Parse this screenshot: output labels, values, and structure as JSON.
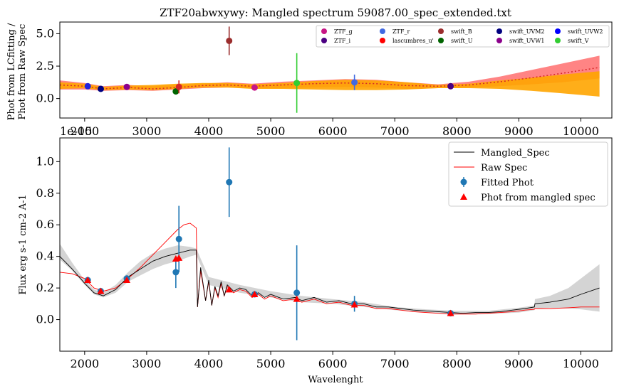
{
  "chart_data": [
    {
      "type": "scatter",
      "title": "ZTF20abwxywy: Mangled spectrum 59087.00_spec_extended.txt",
      "ylabel_lines": [
        "Phot from LCfitting /",
        "Phot from Raw Spec"
      ],
      "xlim": [
        1600,
        10500
      ],
      "ylim": [
        -1.5,
        5.9
      ],
      "yticks": [
        0.0,
        2.5,
        5.0
      ],
      "ytick_labels": [
        "0.0",
        "2.5",
        "5.0"
      ],
      "offset_label": "1e-15",
      "line_ratio": {
        "name": "",
        "color": "#d62728",
        "x": [
          1600,
          2000,
          2300,
          2700,
          3100,
          3500,
          3900,
          4300,
          4700,
          5200,
          5700,
          6200,
          6700,
          7200,
          7700,
          8200,
          8700,
          9200,
          9700,
          10300
        ],
        "y": [
          1.05,
          0.95,
          0.75,
          0.85,
          0.75,
          0.85,
          1.0,
          1.05,
          0.95,
          1.05,
          1.15,
          1.2,
          1.15,
          1.0,
          0.95,
          1.05,
          1.3,
          1.6,
          1.95,
          2.4
        ]
      },
      "band_red": {
        "color": "#ff6f6f",
        "x": [
          1600,
          2000,
          2300,
          2700,
          3100,
          3500,
          3900,
          4300,
          4700,
          5200,
          5700,
          6200,
          6700,
          7200,
          7700,
          8200,
          8700,
          9200,
          9700,
          10300
        ],
        "low": [
          0.7,
          0.7,
          0.6,
          0.65,
          0.6,
          0.7,
          0.8,
          0.85,
          0.8,
          0.8,
          0.85,
          0.9,
          0.85,
          0.75,
          0.8,
          0.85,
          0.95,
          1.1,
          1.25,
          1.55
        ],
        "high": [
          1.4,
          1.2,
          0.95,
          1.05,
          0.95,
          1.05,
          1.15,
          1.25,
          1.15,
          1.3,
          1.4,
          1.5,
          1.45,
          1.25,
          1.1,
          1.3,
          1.7,
          2.2,
          2.7,
          3.3
        ]
      },
      "band_orange": {
        "color": "#ffa500",
        "x": [
          1600,
          2000,
          2300,
          2700,
          3100,
          3500,
          3900,
          4300,
          4700,
          5200,
          5700,
          6200,
          6700,
          7200,
          7700,
          8200,
          8700,
          9200,
          9700,
          10300
        ],
        "low": [
          0.75,
          0.8,
          0.65,
          0.7,
          0.65,
          0.75,
          0.85,
          0.85,
          0.75,
          0.75,
          0.7,
          0.65,
          0.65,
          0.7,
          0.8,
          0.8,
          0.75,
          0.6,
          0.4,
          0.15
        ],
        "high": [
          1.25,
          1.15,
          0.9,
          1.0,
          1.05,
          1.15,
          1.2,
          1.2,
          1.1,
          1.2,
          1.35,
          1.45,
          1.4,
          1.25,
          1.05,
          1.15,
          1.4,
          1.6,
          1.85,
          2.1
        ]
      },
      "points": [
        {
          "x": 2050,
          "y": 0.95,
          "err": 0,
          "color": "#2222dd"
        },
        {
          "x": 2260,
          "y": 0.75,
          "err": 0,
          "color": "#000080"
        },
        {
          "x": 2680,
          "y": 0.9,
          "err": 0,
          "color": "#8b008b"
        },
        {
          "x": 3470,
          "y": 0.55,
          "err": 0,
          "color": "#006400"
        },
        {
          "x": 3520,
          "y": 0.9,
          "err": 0.5,
          "color": "#d62728"
        },
        {
          "x": 4330,
          "y": 4.45,
          "err": 1.1,
          "color": "#9b2d2d"
        },
        {
          "x": 4740,
          "y": 0.85,
          "err": 0,
          "color": "#c71585"
        },
        {
          "x": 5420,
          "y": 1.2,
          "err": 2.3,
          "color": "#32cd32"
        },
        {
          "x": 6350,
          "y": 1.25,
          "err": 0.6,
          "color": "#4169e1"
        },
        {
          "x": 7900,
          "y": 0.95,
          "err": 0,
          "color": "#4b0082"
        }
      ],
      "legend": [
        {
          "label": "ZTF_g",
          "color": "#c71585"
        },
        {
          "label": "ZTF_i",
          "color": "#4b0082"
        },
        {
          "label": "ZTF_r",
          "color": "#4169e1"
        },
        {
          "label": "lascumbres_u'",
          "color": "#ff0000"
        },
        {
          "label": "swift_B",
          "color": "#9b2d2d"
        },
        {
          "label": "swift_U",
          "color": "#006400"
        },
        {
          "label": "swift_UVM2",
          "color": "#000080"
        },
        {
          "label": "swift_UVW1",
          "color": "#8b008b"
        },
        {
          "label": "swift_UVW2",
          "color": "#0000ff"
        },
        {
          "label": "swift_V",
          "color": "#32cd32"
        }
      ]
    },
    {
      "type": "line",
      "xlabel": "Wavelenght",
      "ylabel": "Flux erg s-1 cm-2 A-1",
      "offset_label": "1e-15",
      "xlim": [
        1600,
        10500
      ],
      "ylim": [
        -0.2,
        1.15
      ],
      "xticks": [
        2000,
        3000,
        4000,
        5000,
        6000,
        7000,
        8000,
        9000,
        10000
      ],
      "xtick_labels": [
        "2000",
        "3000",
        "4000",
        "5000",
        "6000",
        "7000",
        "8000",
        "9000",
        "10000"
      ],
      "yticks": [
        0.0,
        0.2,
        0.4,
        0.6,
        0.8,
        1.0
      ],
      "ytick_labels": [
        "0.0",
        "0.2",
        "0.4",
        "0.6",
        "0.8",
        "1.0"
      ],
      "mangled_spec": {
        "name": "Mangled_Spec",
        "color": "#000000",
        "x": [
          1600,
          1800,
          2000,
          2150,
          2300,
          2500,
          2700,
          2900,
          3100,
          3300,
          3500,
          3700,
          3800,
          3820,
          3870,
          3950,
          4000,
          4050,
          4100,
          4150,
          4200,
          4250,
          4300,
          4400,
          4500,
          4600,
          4700,
          4800,
          4900,
          5000,
          5200,
          5400,
          5500,
          5700,
          5900,
          6100,
          6300,
          6500,
          6700,
          6900,
          7100,
          7300,
          7500,
          7700,
          7900,
          8100,
          8300,
          8500,
          8700,
          8900,
          9100,
          9250,
          9260,
          9500,
          9800,
          10000,
          10300
        ],
        "y": [
          0.4,
          0.32,
          0.23,
          0.17,
          0.15,
          0.19,
          0.27,
          0.32,
          0.37,
          0.4,
          0.42,
          0.44,
          0.44,
          0.08,
          0.33,
          0.12,
          0.25,
          0.09,
          0.21,
          0.15,
          0.24,
          0.15,
          0.22,
          0.18,
          0.2,
          0.19,
          0.15,
          0.17,
          0.14,
          0.16,
          0.13,
          0.14,
          0.12,
          0.14,
          0.11,
          0.12,
          0.1,
          0.1,
          0.08,
          0.08,
          0.07,
          0.06,
          0.055,
          0.05,
          0.045,
          0.04,
          0.045,
          0.045,
          0.05,
          0.06,
          0.07,
          0.08,
          0.1,
          0.11,
          0.13,
          0.16,
          0.2
        ]
      },
      "band_gray": {
        "color": "#cccccc",
        "x": [
          1600,
          1800,
          2000,
          2150,
          2300,
          2500,
          2700,
          2900,
          3100,
          3300,
          3500,
          3700,
          3800,
          4000,
          4500,
          5000,
          5500,
          6000,
          6500,
          7000,
          7500,
          8000,
          8500,
          9000,
          9250,
          9260,
          9500,
          9800,
          10000,
          10300
        ],
        "low": [
          0.38,
          0.31,
          0.22,
          0.16,
          0.14,
          0.17,
          0.24,
          0.28,
          0.32,
          0.35,
          0.37,
          0.4,
          0.41,
          0.22,
          0.17,
          0.14,
          0.11,
          0.1,
          0.08,
          0.06,
          0.045,
          0.035,
          0.035,
          0.045,
          0.06,
          0.07,
          0.075,
          0.07,
          0.065,
          0.05
        ],
        "high": [
          0.48,
          0.36,
          0.25,
          0.19,
          0.17,
          0.22,
          0.3,
          0.37,
          0.42,
          0.45,
          0.47,
          0.46,
          0.45,
          0.27,
          0.22,
          0.18,
          0.15,
          0.13,
          0.11,
          0.08,
          0.065,
          0.055,
          0.055,
          0.075,
          0.09,
          0.13,
          0.15,
          0.2,
          0.26,
          0.35
        ]
      },
      "raw_spec": {
        "name": "Raw Spec",
        "color": "#ff0000",
        "x": [
          1600,
          1800,
          2000,
          2150,
          2300,
          2500,
          2700,
          2900,
          3100,
          3300,
          3500,
          3600,
          3700,
          3800,
          3820,
          3870,
          3950,
          4000,
          4050,
          4100,
          4150,
          4200,
          4250,
          4300,
          4400,
          4500,
          4600,
          4700,
          4800,
          4900,
          5000,
          5200,
          5400,
          5500,
          5700,
          5900,
          6100,
          6300,
          6500,
          6700,
          6900,
          7100,
          7300,
          7500,
          7700,
          7900,
          8100,
          8300,
          8500,
          8700,
          8900,
          9100,
          9250,
          9260,
          9500,
          9800,
          10000,
          10300
        ],
        "y": [
          0.3,
          0.29,
          0.26,
          0.2,
          0.18,
          0.2,
          0.26,
          0.33,
          0.41,
          0.49,
          0.57,
          0.6,
          0.61,
          0.58,
          0.08,
          0.31,
          0.12,
          0.24,
          0.09,
          0.2,
          0.14,
          0.23,
          0.15,
          0.21,
          0.17,
          0.19,
          0.18,
          0.14,
          0.16,
          0.13,
          0.15,
          0.12,
          0.13,
          0.11,
          0.13,
          0.1,
          0.11,
          0.09,
          0.09,
          0.07,
          0.07,
          0.06,
          0.05,
          0.045,
          0.04,
          0.035,
          0.035,
          0.035,
          0.04,
          0.045,
          0.05,
          0.06,
          0.065,
          0.07,
          0.07,
          0.075,
          0.08,
          0.08
        ]
      },
      "fitted_phot": {
        "name": "Fitted Phot",
        "color": "#1f77b4",
        "points": [
          {
            "x": 2050,
            "y": 0.25,
            "err": 0.015
          },
          {
            "x": 2260,
            "y": 0.18,
            "err": 0.01
          },
          {
            "x": 2680,
            "y": 0.26,
            "err": 0.02
          },
          {
            "x": 3470,
            "y": 0.3,
            "err": 0.1
          },
          {
            "x": 3520,
            "y": 0.51,
            "err": 0.21
          },
          {
            "x": 4330,
            "y": 0.87,
            "err": 0.22
          },
          {
            "x": 4740,
            "y": 0.16,
            "err": 0.015
          },
          {
            "x": 5420,
            "y": 0.17,
            "err": 0.3
          },
          {
            "x": 6350,
            "y": 0.1,
            "err": 0.05
          },
          {
            "x": 7900,
            "y": 0.04,
            "err": 0.005
          }
        ]
      },
      "phot_mangled": {
        "name": "Phot from mangled spec",
        "color": "#ff0000",
        "points": [
          {
            "x": 2050,
            "y": 0.25
          },
          {
            "x": 2260,
            "y": 0.18
          },
          {
            "x": 2680,
            "y": 0.25
          },
          {
            "x": 3470,
            "y": 0.385
          },
          {
            "x": 3520,
            "y": 0.39
          },
          {
            "x": 4330,
            "y": 0.19
          },
          {
            "x": 4740,
            "y": 0.16
          },
          {
            "x": 5420,
            "y": 0.13
          },
          {
            "x": 6350,
            "y": 0.095
          },
          {
            "x": 7900,
            "y": 0.04
          }
        ]
      }
    }
  ]
}
